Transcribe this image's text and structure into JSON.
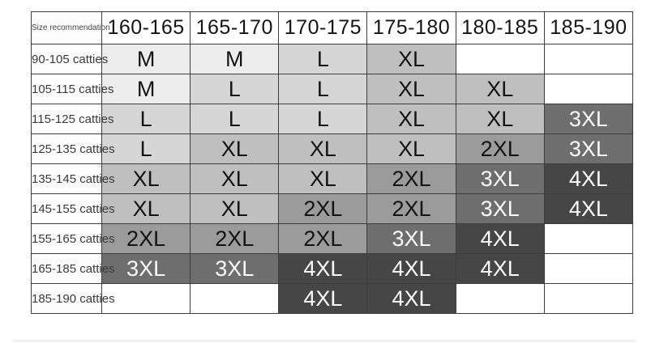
{
  "colors": {
    "cells": {
      "M": "#ededed",
      "L": "#d6d6d6",
      "XL": "#bfbfbf",
      "2XL": "#9b9b9b",
      "3XL": "#6e6e6e",
      "4XL": "#464646"
    },
    "empty": "#ffffff",
    "grid": "#3d3d3d",
    "dark_text": "#141414",
    "light_text": "#fafafa"
  },
  "light_text_sizes": [
    "3XL",
    "4XL"
  ],
  "chart_data": {
    "type": "table",
    "title": "Size recommendation",
    "columns": [
      "160-165",
      "165-170",
      "170-175",
      "175-180",
      "180-185",
      "185-190"
    ],
    "row_labels": [
      "90-105 catties",
      "105-115 catties",
      "115-125 catties",
      "125-135 catties",
      "135-145 catties",
      "145-155 catties",
      "155-165 catties",
      "165-185 catties",
      "185-190 catties"
    ],
    "rows": [
      [
        "M",
        "M",
        "L",
        "XL",
        "",
        ""
      ],
      [
        "M",
        "L",
        "L",
        "XL",
        "XL",
        ""
      ],
      [
        "L",
        "L",
        "L",
        "XL",
        "XL",
        "3XL"
      ],
      [
        "L",
        "XL",
        "XL",
        "XL",
        "2XL",
        "3XL"
      ],
      [
        "XL",
        "XL",
        "XL",
        "2XL",
        "3XL",
        "4XL"
      ],
      [
        "XL",
        "XL",
        "2XL",
        "2XL",
        "3XL",
        "4XL"
      ],
      [
        "2XL",
        "2XL",
        "2XL",
        "3XL",
        "4XL",
        ""
      ],
      [
        "3XL",
        "3XL",
        "4XL",
        "4XL",
        "4XL",
        ""
      ],
      [
        "",
        "",
        "4XL",
        "4XL",
        "",
        ""
      ]
    ]
  }
}
